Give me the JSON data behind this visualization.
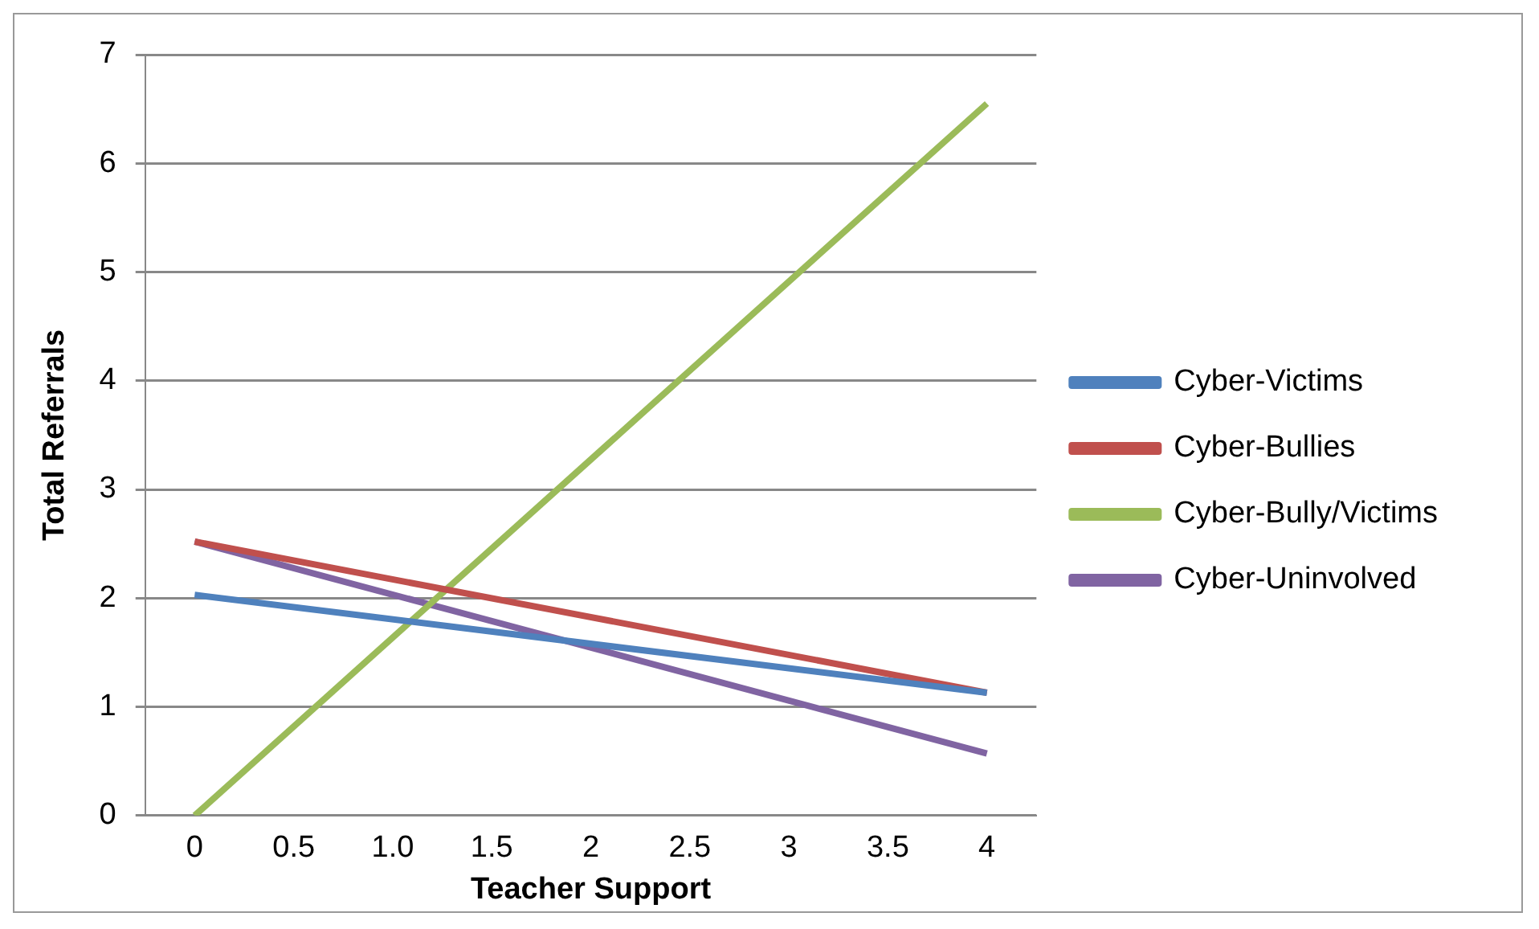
{
  "chart_data": {
    "type": "line",
    "xlabel": "Teacher Support",
    "ylabel": "Total Referrals",
    "categories": [
      "0",
      "0.5",
      "1.0",
      "1.5",
      "2",
      "2.5",
      "3",
      "3.5",
      "4"
    ],
    "series": [
      {
        "name": "Cyber-Victims",
        "color": "#4f81bd",
        "values": [
          2.03,
          null,
          null,
          null,
          null,
          null,
          null,
          null,
          1.13
        ]
      },
      {
        "name": "Cyber-Bullies",
        "color": "#c0504d",
        "values": [
          2.52,
          null,
          null,
          null,
          null,
          null,
          null,
          null,
          1.13
        ]
      },
      {
        "name": "Cyber-Bully/Victims",
        "color": "#9bbb59",
        "values": [
          0,
          null,
          null,
          null,
          null,
          null,
          null,
          null,
          6.55
        ]
      },
      {
        "name": "Cyber-Uninvolved",
        "color": "#8064a2",
        "values": [
          2.52,
          null,
          null,
          null,
          null,
          null,
          null,
          null,
          0.57
        ]
      }
    ],
    "ylim": [
      0,
      7
    ],
    "yticks": [
      0,
      1,
      2,
      3,
      4,
      5,
      6,
      7
    ],
    "grid": "y",
    "legend": "right",
    "marker": "none",
    "line_style": "solid"
  }
}
